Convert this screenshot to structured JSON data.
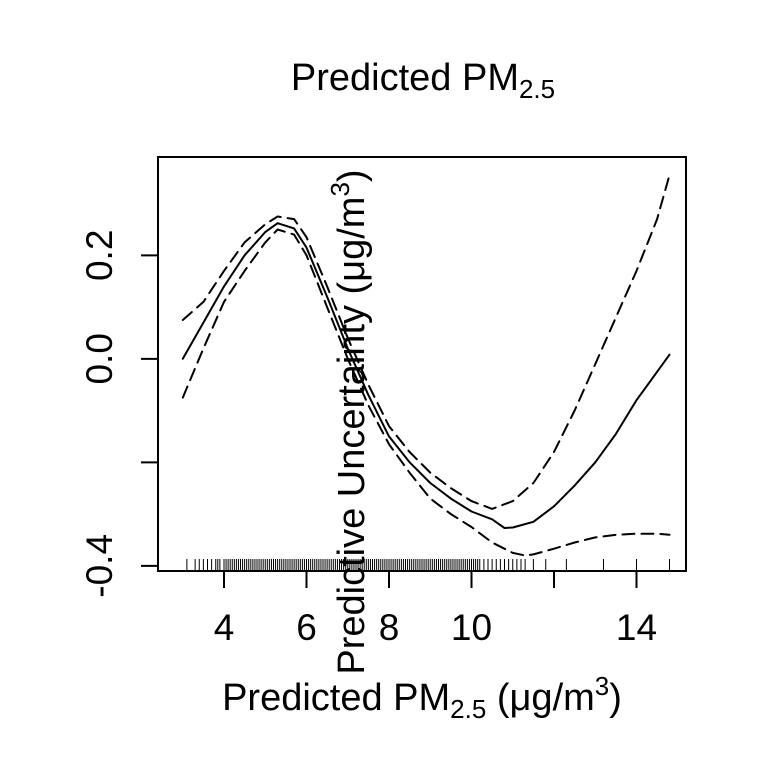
{
  "chart_data": {
    "type": "line",
    "title": {
      "main": "Predicted PM",
      "sub": "2.5"
    },
    "xlabel": {
      "main": "Predicted PM",
      "sub": "2.5",
      "unit_open": " (μg/m",
      "sup": "3",
      "unit_close": ")"
    },
    "ylabel": {
      "text": "Predictive Uncertainty (μg/m",
      "sup": "3",
      "close": ")"
    },
    "xlim": [
      2.4,
      15.2
    ],
    "ylim": [
      -0.41,
      0.39
    ],
    "x_ticks": [
      4,
      6,
      8,
      10,
      12,
      14
    ],
    "x_tick_labels": [
      "4",
      "6",
      "8",
      "10",
      "",
      "14"
    ],
    "y_ticks": [
      -0.4,
      -0.2,
      0.0,
      0.2
    ],
    "y_tick_labels": [
      "-0.4",
      "",
      "0.0",
      "0.2"
    ],
    "grid": false,
    "series": [
      {
        "style": "solid",
        "x": [
          3.0,
          3.5,
          4.0,
          4.5,
          5.0,
          5.3,
          5.7,
          6.0,
          6.5,
          7.0,
          7.5,
          8.0,
          8.5,
          9.0,
          9.5,
          10.0,
          10.5,
          10.8,
          11.0,
          11.5,
          12.0,
          12.5,
          13.0,
          13.5,
          14.0,
          14.5,
          14.8
        ],
        "y": [
          0.0,
          0.07,
          0.14,
          0.2,
          0.245,
          0.262,
          0.252,
          0.215,
          0.12,
          0.02,
          -0.07,
          -0.15,
          -0.2,
          -0.24,
          -0.27,
          -0.295,
          -0.31,
          -0.327,
          -0.326,
          -0.315,
          -0.285,
          -0.245,
          -0.2,
          -0.145,
          -0.08,
          -0.025,
          0.008
        ]
      },
      {
        "style": "dashed",
        "x": [
          3.0,
          3.5,
          4.0,
          4.5,
          5.0,
          5.3,
          5.7,
          6.0,
          6.5,
          7.0,
          7.5,
          8.0,
          8.5,
          9.0,
          9.5,
          10.0,
          10.5,
          11.0,
          11.5,
          12.0,
          12.5,
          13.0,
          13.5,
          14.0,
          14.5,
          14.8
        ],
        "y": [
          0.075,
          0.11,
          0.17,
          0.225,
          0.26,
          0.275,
          0.27,
          0.235,
          0.14,
          0.04,
          -0.05,
          -0.13,
          -0.18,
          -0.22,
          -0.25,
          -0.275,
          -0.29,
          -0.275,
          -0.24,
          -0.18,
          -0.1,
          -0.01,
          0.08,
          0.17,
          0.27,
          0.355
        ]
      },
      {
        "style": "dashed",
        "x": [
          3.0,
          3.5,
          4.0,
          4.5,
          5.0,
          5.3,
          5.7,
          6.0,
          6.5,
          7.0,
          7.5,
          8.0,
          8.5,
          9.0,
          9.5,
          10.0,
          10.5,
          11.0,
          11.3,
          11.5,
          12.0,
          12.5,
          13.0,
          13.5,
          14.0,
          14.5,
          14.8
        ],
        "y": [
          -0.075,
          0.02,
          0.11,
          0.17,
          0.225,
          0.25,
          0.24,
          0.2,
          0.1,
          0.0,
          -0.09,
          -0.165,
          -0.22,
          -0.27,
          -0.3,
          -0.325,
          -0.355,
          -0.375,
          -0.38,
          -0.378,
          -0.367,
          -0.355,
          -0.345,
          -0.34,
          -0.338,
          -0.338,
          -0.34
        ]
      }
    ],
    "rug": [
      3.1,
      3.3,
      3.4,
      3.5,
      3.6,
      3.7,
      3.8,
      3.85,
      3.9,
      4.0,
      4.05,
      4.1,
      4.15,
      4.2,
      4.25,
      4.3,
      4.35,
      4.4,
      4.45,
      4.5,
      4.55,
      4.6,
      4.65,
      4.7,
      4.75,
      4.8,
      4.85,
      4.9,
      4.95,
      5.0,
      5.05,
      5.1,
      5.15,
      5.2,
      5.25,
      5.3,
      5.35,
      5.4,
      5.45,
      5.5,
      5.55,
      5.6,
      5.65,
      5.7,
      5.75,
      5.8,
      5.85,
      5.9,
      5.95,
      6.0,
      6.05,
      6.1,
      6.15,
      6.2,
      6.25,
      6.3,
      6.35,
      6.4,
      6.45,
      6.5,
      6.55,
      6.6,
      6.65,
      6.7,
      6.75,
      6.8,
      6.85,
      6.9,
      6.95,
      7.0,
      7.05,
      7.1,
      7.15,
      7.2,
      7.25,
      7.3,
      7.35,
      7.4,
      7.45,
      7.5,
      7.55,
      7.6,
      7.65,
      7.7,
      7.75,
      7.8,
      7.85,
      7.9,
      7.95,
      8.0,
      8.05,
      8.1,
      8.15,
      8.2,
      8.25,
      8.3,
      8.35,
      8.4,
      8.45,
      8.5,
      8.55,
      8.6,
      8.65,
      8.7,
      8.75,
      8.8,
      8.85,
      8.9,
      8.95,
      9.0,
      9.05,
      9.1,
      9.15,
      9.2,
      9.25,
      9.3,
      9.35,
      9.4,
      9.45,
      9.5,
      9.55,
      9.6,
      9.65,
      9.7,
      9.75,
      9.8,
      9.85,
      9.9,
      9.95,
      10.0,
      10.05,
      10.1,
      10.15,
      10.2,
      10.3,
      10.4,
      10.5,
      10.6,
      10.7,
      10.8,
      10.9,
      11.0,
      11.1,
      11.2,
      11.3,
      11.5,
      11.8,
      12.3,
      13.2,
      14.0,
      14.8
    ]
  }
}
